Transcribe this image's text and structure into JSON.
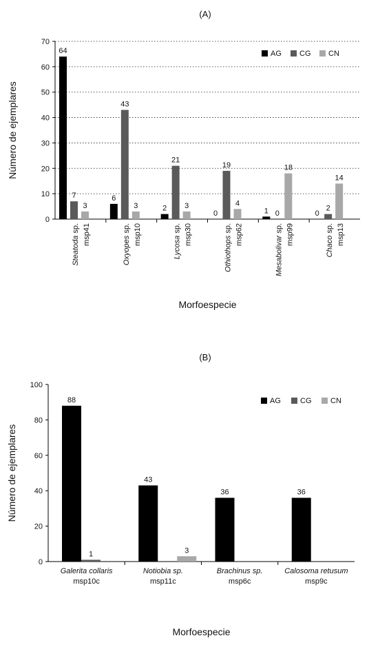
{
  "chart_data": [
    {
      "type": "bar",
      "panel": "(A)",
      "xlabel": "Morfoespecie",
      "ylabel": "Número de ejemplares",
      "ylim": [
        0,
        70
      ],
      "yticks": [
        "0",
        "10",
        "20",
        "30",
        "40",
        "50",
        "60",
        "70"
      ],
      "grid": "horizontal dotted",
      "legend_position": "top-right",
      "categories": [
        {
          "genus": "Steatoda",
          "suffix": " sp.",
          "code": "msp41"
        },
        {
          "genus": "Oxyopes",
          "suffix": " sp.",
          "code": "msp10"
        },
        {
          "genus": "Lycosa",
          "suffix": " sp.",
          "code": "msp30"
        },
        {
          "genus": "Othiothops",
          "suffix": " sp.",
          "code": "msp62"
        },
        {
          "genus": "Mesabolivar",
          "suffix": " sp.",
          "code": "msp99"
        },
        {
          "genus": "Chaco",
          "suffix": " sp.",
          "code": "msp13"
        }
      ],
      "series": [
        {
          "name": "AG",
          "color": "#000000",
          "values": [
            64,
            6,
            2,
            0,
            1,
            0
          ]
        },
        {
          "name": "CG",
          "color": "#5a5a5a",
          "values": [
            7,
            43,
            21,
            19,
            0,
            2
          ]
        },
        {
          "name": "CN",
          "color": "#a8a8a8",
          "values": [
            3,
            3,
            3,
            4,
            18,
            14
          ]
        }
      ]
    },
    {
      "type": "bar",
      "panel": "(B)",
      "xlabel": "Morfoespecie",
      "ylabel": "Número de ejemplares",
      "ylim": [
        0,
        100
      ],
      "yticks": [
        "0",
        "20",
        "40",
        "60",
        "80",
        "100"
      ],
      "grid": "none",
      "legend_position": "top-right",
      "categories": [
        {
          "line1": "Galerita collaris",
          "line2": "msp10c"
        },
        {
          "line1": "Notiobia sp.",
          "line2": "msp11c"
        },
        {
          "line1": "Brachinus sp.",
          "line2": "msp6c"
        },
        {
          "line1": "Calosoma retusum",
          "line2": "msp9c"
        }
      ],
      "series": [
        {
          "name": "AG",
          "color": "#000000",
          "values": [
            88,
            43,
            36,
            36
          ]
        },
        {
          "name": "CG",
          "color": "#5a5a5a",
          "values": [
            1,
            null,
            null,
            null
          ]
        },
        {
          "name": "CN",
          "color": "#a8a8a8",
          "values": [
            null,
            3,
            null,
            null
          ]
        }
      ]
    }
  ]
}
